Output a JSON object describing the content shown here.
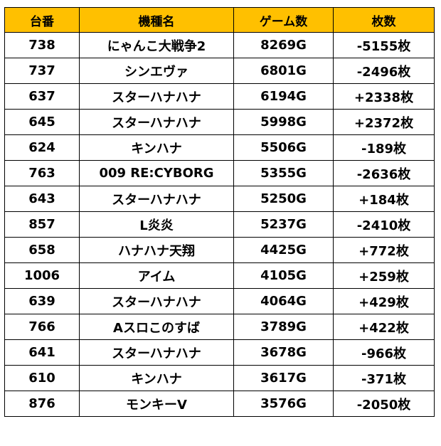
{
  "table": {
    "headers": [
      "台番",
      "機種名",
      "ゲーム数",
      "枚数"
    ],
    "rows": [
      {
        "unit": "738",
        "model": "にゃんこ大戦争2",
        "games": "8269G",
        "coins": "-5155枚",
        "negative": true
      },
      {
        "unit": "737",
        "model": "シンエヴァ",
        "games": "6801G",
        "coins": "-2496枚",
        "negative": true
      },
      {
        "unit": "637",
        "model": "スターハナハナ",
        "games": "6194G",
        "coins": "+2338枚",
        "negative": false
      },
      {
        "unit": "645",
        "model": "スターハナハナ",
        "games": "5998G",
        "coins": "+2372枚",
        "negative": false
      },
      {
        "unit": "624",
        "model": "キンハナ",
        "games": "5506G",
        "coins": "-189枚",
        "negative": true
      },
      {
        "unit": "763",
        "model": "009 RE:CYBORG",
        "games": "5355G",
        "coins": "-2636枚",
        "negative": true
      },
      {
        "unit": "643",
        "model": "スターハナハナ",
        "games": "5250G",
        "coins": "+184枚",
        "negative": false
      },
      {
        "unit": "857",
        "model": "L炎炎",
        "games": "5237G",
        "coins": "-2410枚",
        "negative": true
      },
      {
        "unit": "658",
        "model": "ハナハナ天翔",
        "games": "4425G",
        "coins": "+772枚",
        "negative": false
      },
      {
        "unit": "1006",
        "model": "アイム",
        "games": "4105G",
        "coins": "+259枚",
        "negative": false
      },
      {
        "unit": "639",
        "model": "スターハナハナ",
        "games": "4064G",
        "coins": "+429枚",
        "negative": false
      },
      {
        "unit": "766",
        "model": "Aスロこのすば",
        "games": "3789G",
        "coins": "+422枚",
        "negative": false
      },
      {
        "unit": "641",
        "model": "スターハナハナ",
        "games": "3678G",
        "coins": "-966枚",
        "negative": true
      },
      {
        "unit": "610",
        "model": "キンハナ",
        "games": "3617G",
        "coins": "-371枚",
        "negative": true
      },
      {
        "unit": "876",
        "model": "モンキーV",
        "games": "3576G",
        "coins": "-2050枚",
        "negative": true
      }
    ]
  },
  "colors": {
    "header_bg": "#ffc000",
    "negative": "#ff0000",
    "positive": "#000000",
    "border": "#000000"
  }
}
